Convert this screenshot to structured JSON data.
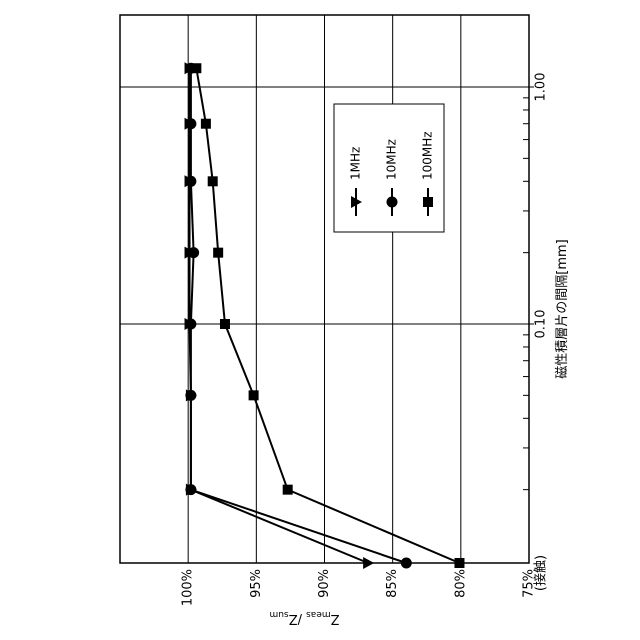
{
  "chart_data": {
    "type": "line",
    "orientation": "rotated-90",
    "x_scale": "log",
    "xlabel": "磁性積層片の間隔[mm]",
    "ylabel_main": "Z",
    "ylabel_meas_sub": "meas",
    "ylabel_sep": " /Z",
    "ylabel_sum_sub": "sum",
    "x_ticks": [
      {
        "value": 0,
        "label": "(接触)"
      },
      {
        "value": 0.1,
        "label": "0.10"
      },
      {
        "value": 1.0,
        "label": "1.00"
      }
    ],
    "y_ticks": [
      {
        "value": 75,
        "label": "75%"
      },
      {
        "value": 80,
        "label": "80%"
      },
      {
        "value": 85,
        "label": "85%"
      },
      {
        "value": 90,
        "label": "90%"
      },
      {
        "value": 95,
        "label": "95%"
      },
      {
        "value": 100,
        "label": "100%"
      }
    ],
    "ylim": [
      75,
      105
    ],
    "legend_position": "upper-right",
    "grid": true,
    "x": [
      0,
      0.02,
      0.05,
      0.1,
      0.2,
      0.4,
      0.7,
      1.2
    ],
    "series": [
      {
        "name": "1MHz",
        "marker": "triangle",
        "values": [
          86.8,
          99.8,
          99.8,
          99.9,
          99.9,
          99.9,
          99.9,
          99.9
        ]
      },
      {
        "name": "10MHz",
        "marker": "circle",
        "values": [
          84.0,
          99.8,
          99.8,
          99.8,
          99.6,
          99.8,
          99.8,
          99.8
        ]
      },
      {
        "name": "100MHz",
        "marker": "square",
        "values": [
          80.1,
          92.7,
          95.2,
          97.3,
          97.8,
          98.2,
          98.7,
          99.4
        ]
      }
    ]
  }
}
